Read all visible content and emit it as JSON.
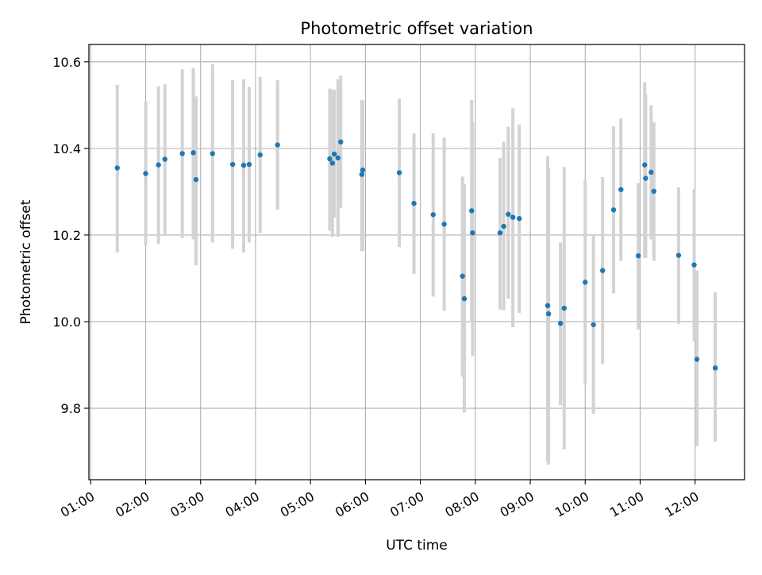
{
  "chart_data": {
    "type": "scatter",
    "title": "Photometric offset variation",
    "xlabel": "UTC time",
    "ylabel": "Photometric offset",
    "xlim": [
      "00:58",
      "12:54"
    ],
    "ylim": [
      9.635,
      10.64
    ],
    "x_ticks": [
      "01:00",
      "02:00",
      "03:00",
      "04:00",
      "05:00",
      "06:00",
      "07:00",
      "08:00",
      "09:00",
      "10:00",
      "11:00",
      "12:00"
    ],
    "y_ticks": [
      9.8,
      10.0,
      10.2,
      10.4,
      10.6
    ],
    "grid": true,
    "colors": {
      "points": "#1f77b4",
      "errorbars": "#d3d3d3",
      "grid": "#b0b0b0"
    },
    "series": [
      {
        "time": [
          "01:29",
          "02:00",
          "02:14",
          "02:21",
          "02:40",
          "02:52",
          "02:55",
          "03:13",
          "03:35",
          "03:47",
          "03:53",
          "04:05",
          "04:24",
          "05:21",
          "05:24",
          "05:26",
          "05:30",
          "05:33",
          "05:56",
          "05:57",
          "06:37",
          "06:53",
          "07:14",
          "07:26",
          "07:46",
          "07:48",
          "07:56",
          "07:57",
          "08:27",
          "08:31",
          "08:36",
          "08:41",
          "08:48",
          "09:19",
          "09:20",
          "09:33",
          "09:37",
          "10:00",
          "10:09",
          "10:19",
          "10:31",
          "10:39",
          "10:58",
          "11:05",
          "11:06",
          "11:12",
          "11:15",
          "11:42",
          "11:59",
          "12:02",
          "12:22"
        ],
        "y": [
          10.355,
          10.342,
          10.362,
          10.375,
          10.388,
          10.39,
          10.328,
          10.388,
          10.363,
          10.361,
          10.363,
          10.385,
          10.408,
          10.376,
          10.366,
          10.387,
          10.378,
          10.415,
          10.34,
          10.35,
          10.344,
          10.273,
          10.247,
          10.225,
          10.105,
          10.053,
          10.256,
          10.205,
          10.205,
          10.22,
          10.248,
          10.241,
          10.238,
          10.037,
          10.018,
          9.996,
          10.031,
          10.091,
          9.993,
          10.118,
          10.258,
          10.305,
          10.152,
          10.362,
          10.331,
          10.345,
          10.301,
          10.153,
          10.131,
          9.913,
          9.893
        ],
        "yerr_low": [
          10.16,
          10.175,
          10.18,
          10.2,
          10.193,
          10.19,
          10.13,
          10.183,
          10.168,
          10.16,
          10.183,
          10.205,
          10.258,
          10.21,
          10.195,
          10.24,
          10.196,
          10.263,
          10.163,
          10.163,
          10.172,
          10.11,
          10.058,
          10.025,
          9.873,
          9.79,
          10.0,
          9.92,
          10.028,
          10.026,
          10.053,
          9.987,
          10.02,
          9.677,
          9.67,
          9.807,
          9.705,
          9.855,
          9.787,
          9.902,
          10.065,
          10.14,
          9.982,
          10.147,
          10.147,
          10.19,
          10.14,
          9.995,
          9.955,
          9.713,
          9.723
        ],
        "yerr_high": [
          10.547,
          10.508,
          10.543,
          10.548,
          10.583,
          10.585,
          10.52,
          10.595,
          10.558,
          10.56,
          10.542,
          10.565,
          10.558,
          10.538,
          10.536,
          10.535,
          10.56,
          10.568,
          10.512,
          10.51,
          10.515,
          10.435,
          10.435,
          10.425,
          10.335,
          10.318,
          10.512,
          10.46,
          10.378,
          10.415,
          10.45,
          10.493,
          10.455,
          10.382,
          10.355,
          10.183,
          10.357,
          10.327,
          10.198,
          10.334,
          10.451,
          10.47,
          10.32,
          10.553,
          10.525,
          10.5,
          10.46,
          10.31,
          10.306,
          10.118,
          10.068
        ]
      }
    ]
  }
}
